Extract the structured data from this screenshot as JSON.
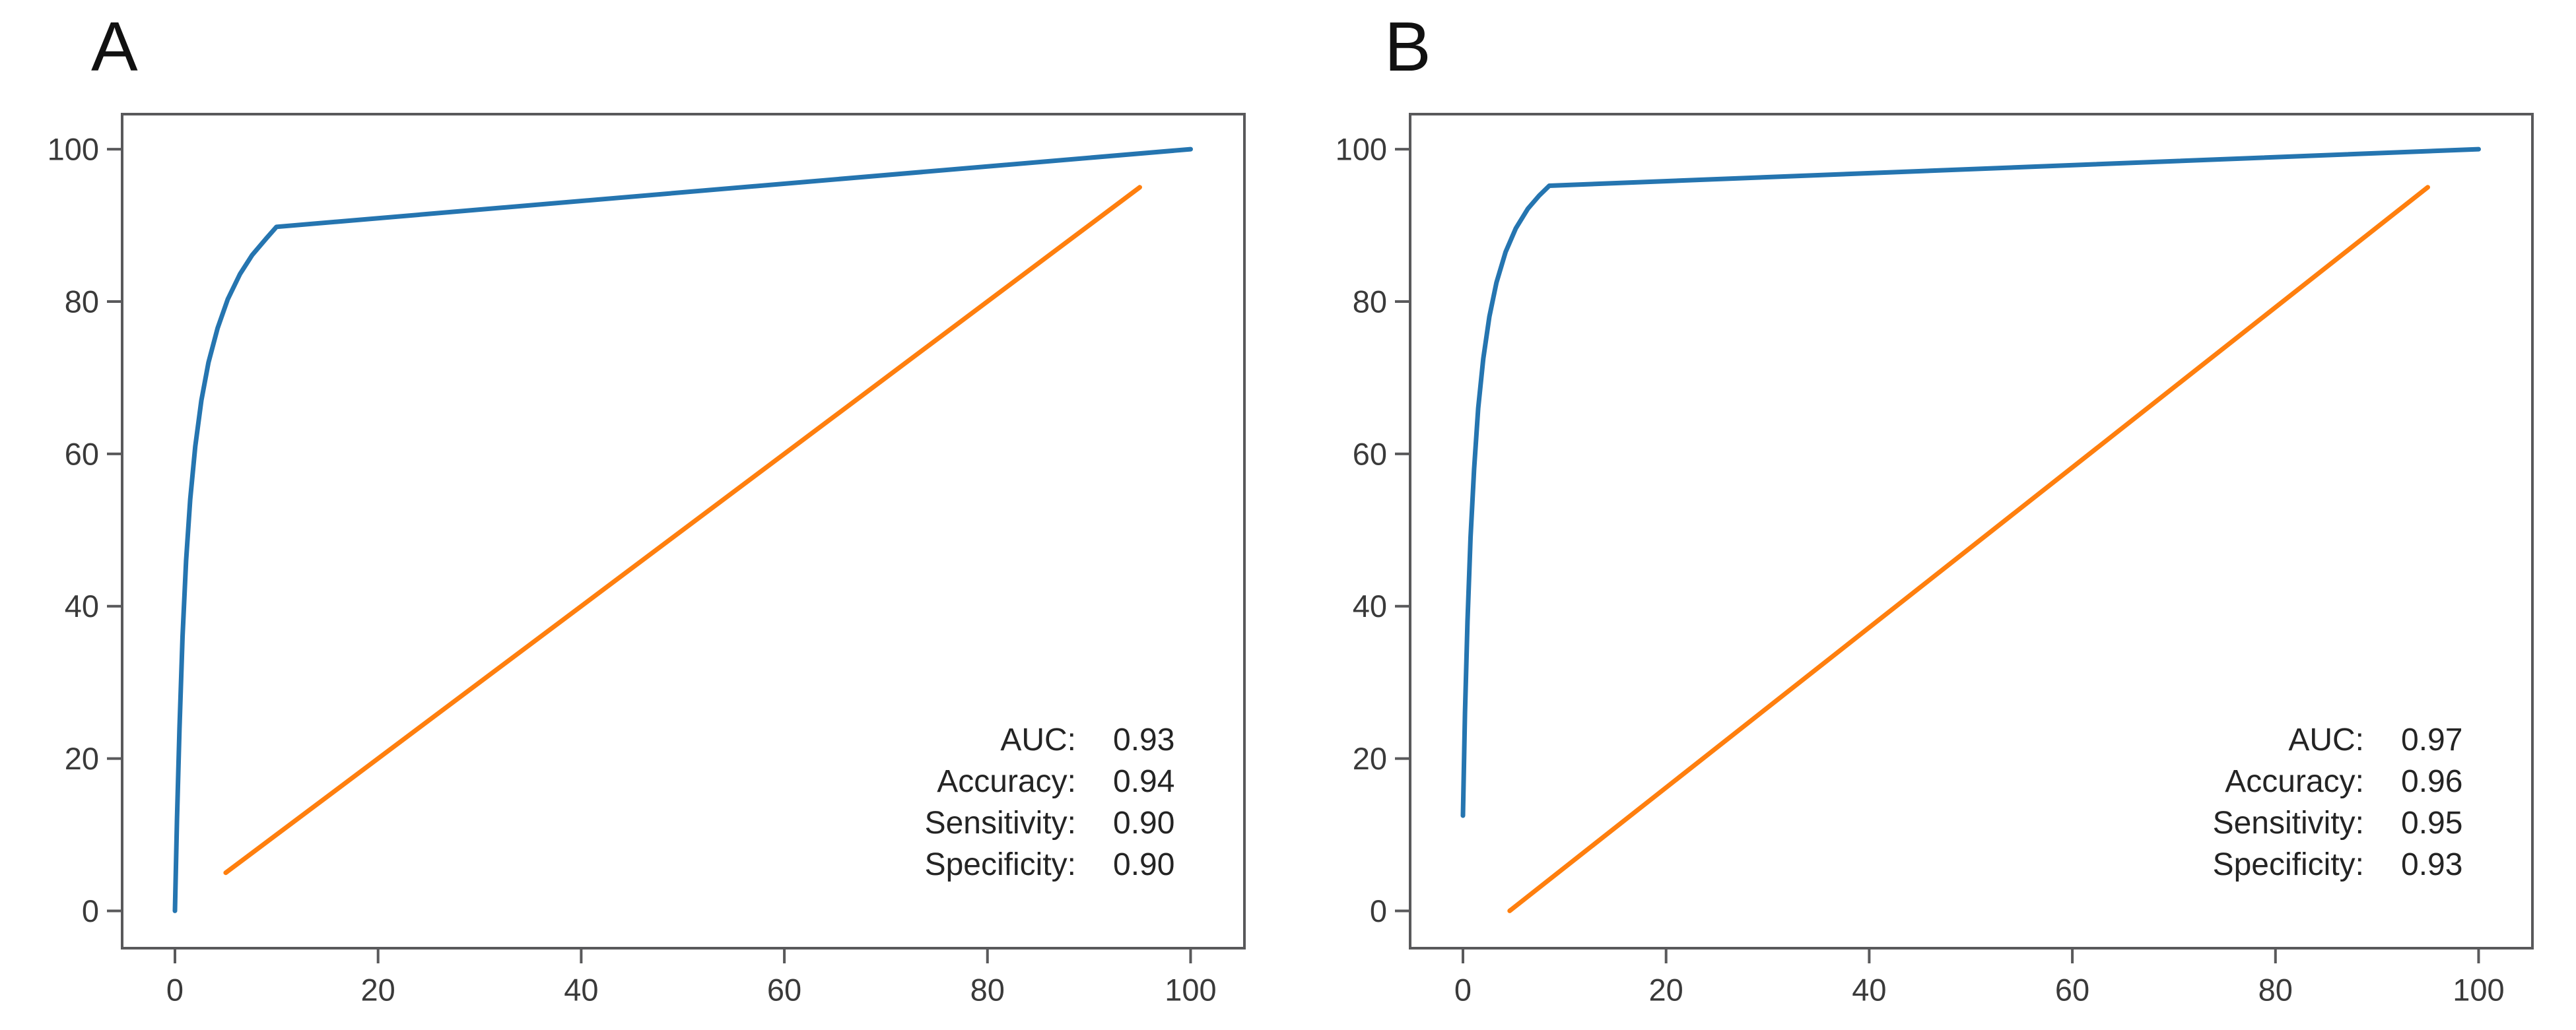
{
  "figure_background": "#ffffff",
  "colors": {
    "roc": "#2575b0",
    "reference": "#ff7f0e",
    "axis": "#59595b",
    "tick_label": "#3a3a3a",
    "annotation": "#242424",
    "panel_letter": "#111111"
  },
  "chart_data": [
    {
      "type": "line",
      "panel_label": "A",
      "title": "",
      "xlabel": "",
      "ylabel": "",
      "grid": false,
      "legend": "none",
      "xticks": [
        0,
        20,
        40,
        60,
        80,
        100
      ],
      "yticks": [
        0,
        20,
        40,
        60,
        80,
        100
      ],
      "xlim": [
        -5.2,
        105.3
      ],
      "ylim": [
        -4.9,
        104.6
      ],
      "series": [
        {
          "name": "roc-curve",
          "color_key": "roc",
          "points": [
            [
              0,
              0
            ],
            [
              0.2,
              12
            ],
            [
              0.45,
              24
            ],
            [
              0.75,
              36
            ],
            [
              1.1,
              46
            ],
            [
              1.5,
              54
            ],
            [
              2,
              61
            ],
            [
              2.6,
              67
            ],
            [
              3.3,
              72
            ],
            [
              4.2,
              76.5
            ],
            [
              5.2,
              80.3
            ],
            [
              6.4,
              83.6
            ],
            [
              7.6,
              86.1
            ],
            [
              9,
              88.3
            ],
            [
              10,
              89.8
            ],
            [
              100,
              100
            ]
          ]
        },
        {
          "name": "chance-line",
          "color_key": "reference",
          "points": [
            [
              5,
              5
            ],
            [
              95,
              95
            ]
          ]
        }
      ],
      "annotations": [
        {
          "label": "AUC:",
          "value": "0.93"
        },
        {
          "label": "Accuracy:",
          "value": "0.94"
        },
        {
          "label": "Sensitivity:",
          "value": "0.90"
        },
        {
          "label": "Specificity:",
          "value": "0.90"
        }
      ]
    },
    {
      "type": "line",
      "panel_label": "B",
      "title": "",
      "xlabel": "",
      "ylabel": "",
      "grid": false,
      "legend": "none",
      "xticks": [
        0,
        20,
        40,
        60,
        80,
        100
      ],
      "yticks": [
        0,
        20,
        40,
        60,
        80,
        100
      ],
      "xlim": [
        -5.2,
        105.3
      ],
      "ylim": [
        -4.9,
        104.6
      ],
      "series": [
        {
          "name": "roc-curve",
          "color_key": "roc",
          "points": [
            [
              0,
              12.5
            ],
            [
              0.2,
              26
            ],
            [
              0.45,
              38
            ],
            [
              0.75,
              49
            ],
            [
              1.1,
              58
            ],
            [
              1.5,
              66
            ],
            [
              2,
              72.5
            ],
            [
              2.6,
              78
            ],
            [
              3.3,
              82.5
            ],
            [
              4.2,
              86.5
            ],
            [
              5.2,
              89.6
            ],
            [
              6.4,
              92.2
            ],
            [
              7.5,
              93.9
            ],
            [
              8.5,
              95.2
            ],
            [
              100,
              100
            ]
          ]
        },
        {
          "name": "chance-line",
          "color_key": "reference",
          "points": [
            [
              4.6,
              0
            ],
            [
              95,
              95
            ]
          ]
        }
      ],
      "annotations": [
        {
          "label": "AUC:",
          "value": "0.97"
        },
        {
          "label": "Accuracy:",
          "value": "0.96"
        },
        {
          "label": "Sensitivity:",
          "value": "0.95"
        },
        {
          "label": "Specificity:",
          "value": "0.93"
        }
      ]
    }
  ]
}
